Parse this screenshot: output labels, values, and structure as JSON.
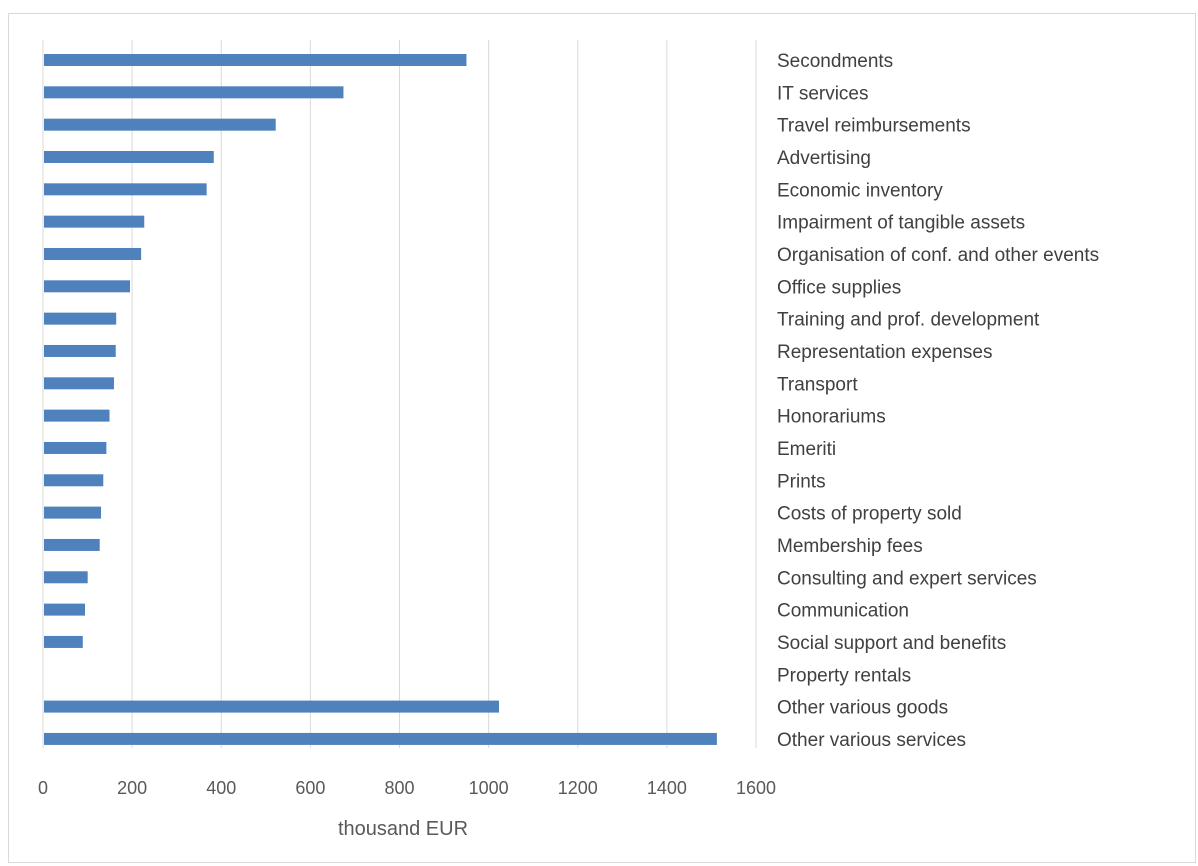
{
  "chart_data": {
    "type": "bar",
    "orientation": "horizontal",
    "categories": [
      "Secondments",
      "IT services",
      "Travel reimbursements",
      "Advertising",
      "Economic inventory",
      "Impairment of tangible assets",
      "Organisation of conf. and other events",
      "Office supplies",
      "Training and prof. development",
      "Representation expenses",
      "Transport",
      "Honorariums",
      "Emeriti",
      "Prints",
      "Costs of property sold",
      "Membership fees",
      "Consulting and expert services",
      "Communication",
      "Social support and benefits",
      "Property rentals",
      "Other various goods",
      "Other various services"
    ],
    "values": [
      948,
      672,
      520,
      381,
      365,
      225,
      218,
      193,
      162,
      161,
      157,
      147,
      140,
      133,
      128,
      125,
      98,
      92,
      87,
      0,
      1021,
      1510
    ],
    "xlabel": "thousand EUR",
    "ylabel": "",
    "xlim": [
      0,
      1600
    ],
    "xticks": [
      0,
      200,
      400,
      600,
      800,
      1000,
      1200,
      1400,
      1600
    ],
    "grid": "vertical",
    "color": "#4f81bd"
  }
}
